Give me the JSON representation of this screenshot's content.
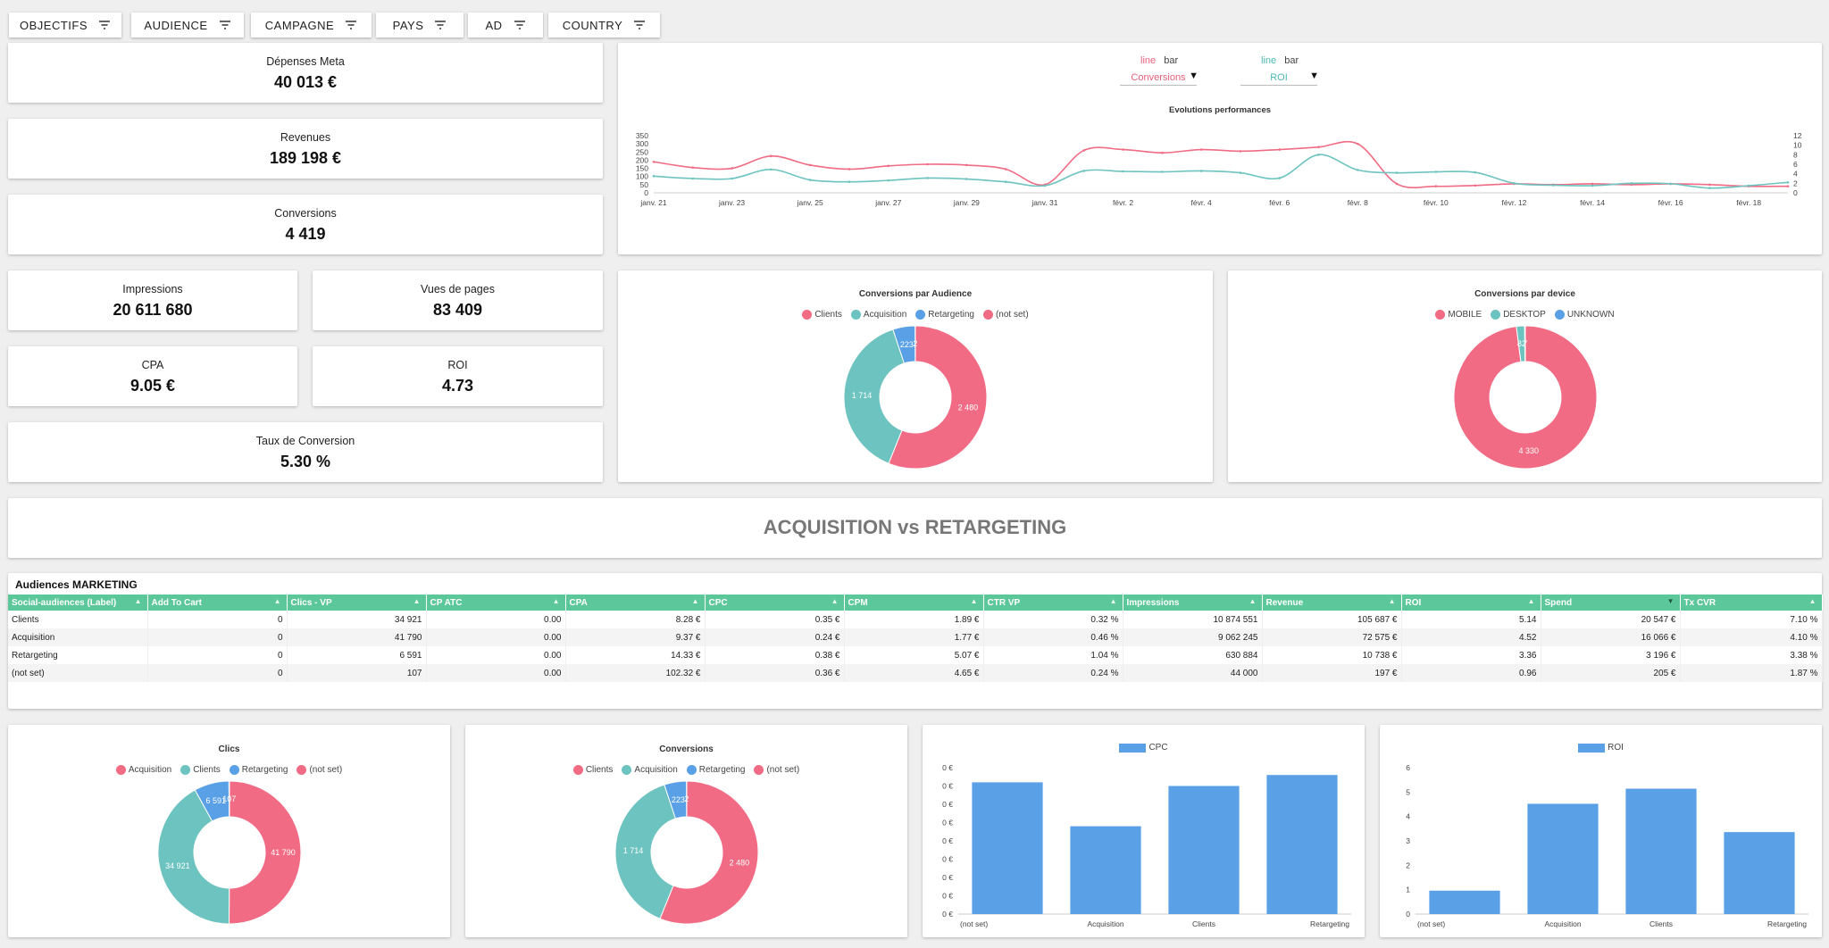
{
  "filters": [
    "OBJECTIFS",
    "AUDIENCE",
    "CAMPAGNE",
    "PAYS",
    "AD",
    "COUNTRY"
  ],
  "kpis": {
    "depenses": {
      "label": "Dépenses Meta",
      "value": "40 013 €"
    },
    "revenues": {
      "label": "Revenues",
      "value": "189 198 €"
    },
    "conversions": {
      "label": "Conversions",
      "value": "4 419"
    },
    "impressions": {
      "label": "Impressions",
      "value": "20 611 680"
    },
    "vues": {
      "label": "Vues de pages",
      "value": "83 409"
    },
    "cpa": {
      "label": "CPA",
      "value": "9.05 €"
    },
    "roi": {
      "label": "ROI",
      "value": "4.73"
    },
    "taux": {
      "label": "Taux de Conversion",
      "value": "5.30 %"
    }
  },
  "evolution": {
    "left_toggle": {
      "line": "line",
      "bar": "bar",
      "selected": "Conversions"
    },
    "right_toggle": {
      "line": "line",
      "bar": "bar",
      "selected": "ROI"
    },
    "title": "Evolutions performances"
  },
  "section_title": "ACQUISITION vs RETARGETING",
  "table": {
    "title": "Audiences MARKETING",
    "columns": [
      "Social-audiences (Label)",
      "Add To Cart",
      "Clics - VP",
      "CP ATC",
      "CPA",
      "CPC",
      "CPM",
      "CTR VP",
      "Impressions",
      "Revenue",
      "ROI",
      "Spend",
      "Tx CVR"
    ],
    "rows": [
      [
        "Clients",
        "0",
        "34 921",
        "0.00",
        "8.28 €",
        "0.35 €",
        "1.89 €",
        "0.32 %",
        "10 874 551",
        "105 687 €",
        "5.14",
        "20 547 €",
        "7.10 %"
      ],
      [
        "Acquisition",
        "0",
        "41 790",
        "0.00",
        "9.37 €",
        "0.24 €",
        "1.77 €",
        "0.46 %",
        "9 062 245",
        "72 575 €",
        "4.52",
        "16 066 €",
        "4.10 %"
      ],
      [
        "Retargeting",
        "0",
        "6 591",
        "0.00",
        "14.33 €",
        "0.38 €",
        "5.07 €",
        "1.04 %",
        "630 884",
        "10 738 €",
        "3.36",
        "3 196 €",
        "3.38 %"
      ],
      [
        "(not set)",
        "0",
        "107",
        "0.00",
        "102.32 €",
        "0.36 €",
        "4.65 €",
        "0.24 %",
        "44 000",
        "197 €",
        "0.96",
        "205 €",
        "1.87 %"
      ]
    ]
  },
  "colors": {
    "pink": "#f06b83",
    "teal": "#6cc3bf",
    "blue": "#5aa0e6",
    "green": "#5cc79a"
  },
  "chart_data": [
    {
      "type": "line",
      "title": "Evolutions performances",
      "x_ticks": [
        "janv. 21",
        "janv. 23",
        "janv. 25",
        "janv. 27",
        "janv. 29",
        "janv. 31",
        "févr. 2",
        "févr. 4",
        "févr. 6",
        "févr. 8",
        "févr. 10",
        "févr. 12",
        "févr. 14",
        "févr. 16",
        "févr. 18"
      ],
      "x": [
        "2024-01-21",
        "2024-01-22",
        "2024-01-23",
        "2024-01-24",
        "2024-01-25",
        "2024-01-26",
        "2024-01-27",
        "2024-01-28",
        "2024-01-29",
        "2024-01-30",
        "2024-01-31",
        "2024-02-01",
        "2024-02-02",
        "2024-02-03",
        "2024-02-04",
        "2024-02-05",
        "2024-02-06",
        "2024-02-07",
        "2024-02-08",
        "2024-02-09",
        "2024-02-10",
        "2024-02-11",
        "2024-02-12",
        "2024-02-13",
        "2024-02-14",
        "2024-02-15",
        "2024-02-16",
        "2024-02-17",
        "2024-02-18",
        "2024-02-19"
      ],
      "series": [
        {
          "name": "Conversions",
          "axis": "left",
          "values": [
            190,
            155,
            150,
            225,
            170,
            145,
            165,
            175,
            170,
            145,
            50,
            260,
            265,
            245,
            265,
            255,
            265,
            280,
            300,
            55,
            40,
            45,
            55,
            50,
            55,
            50,
            55,
            50,
            40,
            40
          ]
        },
        {
          "name": "ROI",
          "axis": "right",
          "values": [
            3.5,
            3.0,
            3.0,
            4.9,
            2.7,
            2.3,
            2.6,
            3.1,
            2.9,
            2.3,
            1.5,
            4.6,
            4.5,
            4.4,
            4.6,
            4.2,
            3.1,
            8.0,
            4.8,
            4.2,
            4.4,
            4.3,
            2.0,
            1.6,
            1.5,
            2.0,
            1.9,
            1.0,
            1.5,
            2.2
          ]
        }
      ],
      "y_left_ticks": [
        0,
        50,
        100,
        150,
        200,
        250,
        300,
        350
      ],
      "y_right_ticks": [
        0,
        2,
        4,
        6,
        8,
        10,
        12
      ]
    },
    {
      "type": "pie",
      "title": "Conversions par Audience",
      "labels": [
        "Clients",
        "Acquisition",
        "Retargeting",
        "(not set)"
      ],
      "values": [
        2480,
        1714,
        223,
        2
      ],
      "value_labels": [
        "2 480",
        "1 714",
        "223",
        "2"
      ]
    },
    {
      "type": "pie",
      "title": "Conversions par device",
      "labels": [
        "MOBILE",
        "DESKTOP",
        "UNKNOWN"
      ],
      "values": [
        4330,
        82,
        7
      ],
      "value_labels": [
        "4 330",
        "82",
        "7"
      ]
    },
    {
      "type": "pie",
      "title": "Clics",
      "labels": [
        "Acquisition",
        "Clients",
        "Retargeting",
        "(not set)"
      ],
      "values": [
        41790,
        34921,
        6591,
        107
      ],
      "value_labels": [
        "41 790",
        "34 921",
        "6 591",
        "107"
      ]
    },
    {
      "type": "pie",
      "title": "Conversions",
      "labels": [
        "Clients",
        "Acquisition",
        "Retargeting",
        "(not set)"
      ],
      "values": [
        2480,
        1714,
        223,
        2
      ],
      "value_labels": [
        "2 480",
        "1 714",
        "223",
        "2"
      ]
    },
    {
      "type": "bar",
      "series_name": "CPC",
      "categories": [
        "(not set)",
        "Acquisition",
        "Clients",
        "Retargeting"
      ],
      "values": [
        0.36,
        0.24,
        0.35,
        0.38
      ],
      "y_tick_labels": [
        "0 €",
        "0 €",
        "0 €",
        "0 €",
        "0 €",
        "0 €",
        "0 €",
        "0 €",
        "0 €"
      ],
      "ylim": [
        0,
        0.4
      ]
    },
    {
      "type": "bar",
      "series_name": "ROI",
      "categories": [
        "(not set)",
        "Acquisition",
        "Clients",
        "Retargeting"
      ],
      "values": [
        0.96,
        4.52,
        5.14,
        3.36
      ],
      "y_tick_labels": [
        "0",
        "1",
        "2",
        "3",
        "4",
        "5",
        "6"
      ],
      "ylim": [
        0,
        6
      ]
    }
  ]
}
